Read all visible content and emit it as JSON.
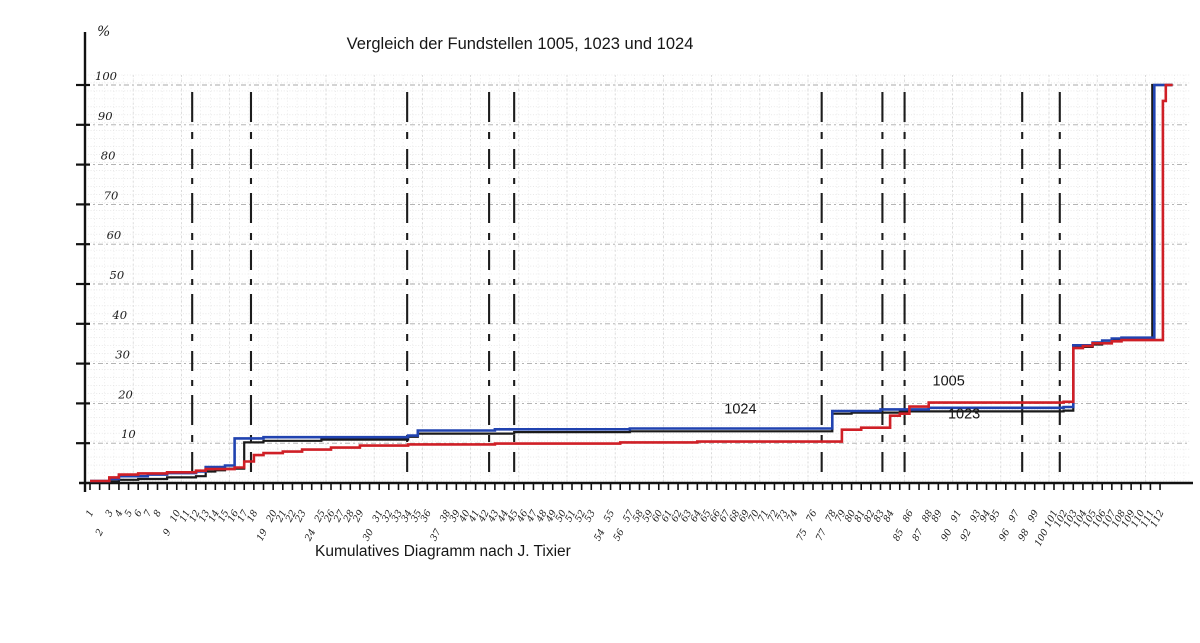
{
  "chart": {
    "title": "Vergleich der Fundstellen 1005, 1023 und 1024",
    "caption": "Kumulatives Diagramm nach J. Tixier",
    "y_axis_unit": "%"
  },
  "chart_data": {
    "type": "line",
    "subtype": "cumulative-step-diagram",
    "title": "Vergleich der Fundstellen 1005, 1023 und 1024",
    "caption": "Kumulatives Diagramm nach J. Tixier",
    "xlabel": "",
    "ylabel": "%",
    "xlim": [
      0,
      113.5
    ],
    "ylim": [
      0,
      100
    ],
    "grid": true,
    "legend_position": "inline-labels",
    "y_ticks": [
      10,
      20,
      30,
      40,
      50,
      60,
      70,
      80,
      90,
      100
    ],
    "y_tick_labels": [
      "10",
      "20",
      "30",
      "40",
      "50",
      "60",
      "70",
      "80",
      "90",
      "100"
    ],
    "x_ticks": [
      1,
      2,
      3,
      4,
      5,
      6,
      7,
      8,
      9,
      10,
      11,
      12,
      13,
      14,
      15,
      16,
      17,
      18,
      19,
      20,
      21,
      22,
      23,
      24,
      25,
      26,
      27,
      28,
      29,
      30,
      31,
      32,
      33,
      34,
      35,
      36,
      37,
      38,
      39,
      40,
      41,
      42,
      43,
      44,
      45,
      46,
      47,
      48,
      49,
      50,
      51,
      52,
      53,
      54,
      55,
      56,
      57,
      58,
      59,
      60,
      61,
      62,
      63,
      64,
      65,
      66,
      67,
      68,
      69,
      70,
      71,
      72,
      73,
      74,
      75,
      76,
      77,
      78,
      79,
      80,
      81,
      82,
      83,
      84,
      85,
      86,
      87,
      88,
      89,
      90,
      91,
      92,
      93,
      94,
      95,
      96,
      97,
      98,
      99,
      100,
      101,
      102,
      103,
      104,
      105,
      106,
      107,
      108,
      109,
      110,
      111,
      112
    ],
    "x_ticks_lower_row": [
      2,
      9,
      19,
      24,
      30,
      37,
      54,
      56,
      75,
      77,
      85,
      87,
      90,
      92,
      96,
      98,
      100
    ],
    "divider_x": [
      11.6,
      17.7,
      33.9,
      42.4,
      45.0,
      76.9,
      83.2,
      85.5,
      97.7,
      101.6
    ],
    "series": [
      {
        "name": "1023",
        "color": "#1a1a1a",
        "label": "1023",
        "label_pos": [
          90.0,
          16.2
        ],
        "points": [
          [
            1,
            0.4
          ],
          [
            4,
            0.8
          ],
          [
            6,
            1.0
          ],
          [
            9,
            1.4
          ],
          [
            12,
            1.7
          ],
          [
            13,
            2.9
          ],
          [
            14,
            3.2
          ],
          [
            15,
            3.6
          ],
          [
            17,
            10.2
          ],
          [
            19,
            10.6
          ],
          [
            25,
            10.9
          ],
          [
            34,
            11.6
          ],
          [
            35,
            12.4
          ],
          [
            45,
            12.8
          ],
          [
            57,
            13.0
          ],
          [
            78,
            17.4
          ],
          [
            80,
            17.7
          ],
          [
            85,
            18.0
          ],
          [
            102,
            18.2
          ],
          [
            103,
            34.2
          ],
          [
            105,
            34.8
          ],
          [
            106,
            35.2
          ],
          [
            107,
            35.8
          ],
          [
            108,
            36.0
          ],
          [
            111.2,
            36.0
          ],
          [
            111.2,
            100
          ],
          [
            113.3,
            100
          ]
        ]
      },
      {
        "name": "1024",
        "color": "#2143b0",
        "label": "1024",
        "label_pos": [
          66.8,
          17.5
        ],
        "points": [
          [
            1,
            0.5
          ],
          [
            3,
            1.0
          ],
          [
            4,
            1.7
          ],
          [
            7,
            2.1
          ],
          [
            9,
            2.5
          ],
          [
            12,
            2.9
          ],
          [
            13,
            4.0
          ],
          [
            15,
            4.4
          ],
          [
            16,
            11.2
          ],
          [
            19,
            11.5
          ],
          [
            34,
            11.9
          ],
          [
            35,
            13.2
          ],
          [
            43,
            13.5
          ],
          [
            57,
            13.7
          ],
          [
            78,
            18.1
          ],
          [
            83,
            18.5
          ],
          [
            88,
            18.9
          ],
          [
            102,
            19.1
          ],
          [
            103,
            34.6
          ],
          [
            105,
            35.3
          ],
          [
            106,
            35.8
          ],
          [
            107,
            36.3
          ],
          [
            108,
            36.5
          ],
          [
            111.4,
            36.5
          ],
          [
            111.4,
            100
          ],
          [
            113.3,
            100
          ]
        ]
      },
      {
        "name": "1005",
        "color": "#cf1f26",
        "label": "1005",
        "label_pos": [
          88.4,
          24.5
        ],
        "points": [
          [
            1,
            0.5
          ],
          [
            3,
            1.4
          ],
          [
            4,
            2.1
          ],
          [
            6,
            2.4
          ],
          [
            9,
            2.7
          ],
          [
            12,
            3.1
          ],
          [
            13,
            3.5
          ],
          [
            16,
            3.9
          ],
          [
            17,
            5.4
          ],
          [
            18,
            7.0
          ],
          [
            19,
            7.5
          ],
          [
            21,
            7.9
          ],
          [
            23,
            8.4
          ],
          [
            26,
            8.9
          ],
          [
            29,
            9.4
          ],
          [
            34,
            9.7
          ],
          [
            43,
            9.9
          ],
          [
            56,
            10.2
          ],
          [
            64,
            10.4
          ],
          [
            79,
            13.4
          ],
          [
            81,
            13.9
          ],
          [
            84,
            16.9
          ],
          [
            85,
            17.4
          ],
          [
            86,
            19.2
          ],
          [
            88,
            20.2
          ],
          [
            102,
            20.4
          ],
          [
            103,
            33.9
          ],
          [
            104,
            34.4
          ],
          [
            105,
            35.1
          ],
          [
            107,
            35.6
          ],
          [
            108,
            35.9
          ],
          [
            112.3,
            35.9
          ],
          [
            112.3,
            96.0
          ],
          [
            112.6,
            100
          ],
          [
            113.3,
            100
          ]
        ]
      }
    ]
  }
}
